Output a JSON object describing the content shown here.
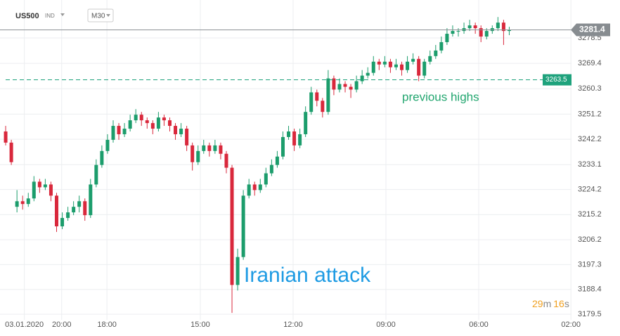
{
  "chart_data": {
    "type": "candlestick",
    "symbol": "US500",
    "market": "IND",
    "timeframe": "M30",
    "up_color": "#1c9d6c",
    "down_color": "#d9283c",
    "grid": true,
    "ylim": [
      3177.5,
      3292.1
    ],
    "yticks": [
      3278.5,
      3269.4,
      3260.3,
      3251.2,
      3242.2,
      3233.1,
      3224.2,
      3215.2,
      3206.2,
      3197.3,
      3188.4,
      3179.5
    ],
    "xlim": [
      -1,
      100
    ],
    "xticks": [
      {
        "value": 3.3,
        "label": "03.01.2020"
      },
      {
        "value": 9.9,
        "label": "20:00"
      },
      {
        "value": 17.9,
        "label": "18:00"
      },
      {
        "value": 34.4,
        "label": "15:00"
      },
      {
        "value": 50.8,
        "label": "12:00"
      },
      {
        "value": 67.2,
        "label": "09:00"
      },
      {
        "value": 83.6,
        "label": "06:00"
      },
      {
        "value": 99.9,
        "label": "02:00"
      }
    ],
    "last_price": 3281.4,
    "level": 3263.5,
    "level_color": "#1ea27c",
    "level_annotation": "previous highs",
    "event_annotation": "Iranian attack",
    "countdown": {
      "minutes": 29,
      "minutes_unit": "m",
      "seconds": 16,
      "seconds_unit": "s"
    },
    "candles": [
      [
        3245,
        3247,
        3240,
        3241
      ],
      [
        3241,
        3242,
        3233,
        3234
      ],
      [
        3218,
        3224,
        3216,
        3220
      ],
      [
        3220,
        3222,
        3217,
        3219
      ],
      [
        3219,
        3223,
        3218,
        3221
      ],
      [
        3221,
        3229,
        3220,
        3227
      ],
      [
        3227,
        3228,
        3223,
        3225
      ],
      [
        3225,
        3228,
        3224,
        3226
      ],
      [
        3226,
        3227,
        3220,
        3222
      ],
      [
        3222,
        3223,
        3209,
        3211
      ],
      [
        3211,
        3216,
        3210,
        3214
      ],
      [
        3214,
        3218,
        3213,
        3216
      ],
      [
        3216,
        3220,
        3215,
        3218
      ],
      [
        3218,
        3222,
        3216,
        3220
      ],
      [
        3220,
        3221,
        3213,
        3215
      ],
      [
        3215,
        3228,
        3214,
        3226
      ],
      [
        3226,
        3235,
        3225,
        3233
      ],
      [
        3233,
        3240,
        3232,
        3238
      ],
      [
        3238,
        3244,
        3237,
        3242
      ],
      [
        3242,
        3249,
        3241,
        3247
      ],
      [
        3247,
        3248,
        3242,
        3244
      ],
      [
        3244,
        3248,
        3243,
        3246
      ],
      [
        3246,
        3251,
        3245,
        3249
      ],
      [
        3249,
        3253,
        3248,
        3251
      ],
      [
        3251,
        3252,
        3247,
        3249
      ],
      [
        3249,
        3250,
        3246,
        3248
      ],
      [
        3248,
        3249,
        3244,
        3246
      ],
      [
        3246,
        3252,
        3245,
        3250
      ],
      [
        3250,
        3251,
        3247,
        3249
      ],
      [
        3249,
        3250,
        3245,
        3247
      ],
      [
        3247,
        3248,
        3242,
        3244
      ],
      [
        3244,
        3248,
        3243,
        3246
      ],
      [
        3246,
        3247,
        3238,
        3240
      ],
      [
        3240,
        3241,
        3231,
        3234
      ],
      [
        3234,
        3240,
        3233,
        3238
      ],
      [
        3238,
        3242,
        3237,
        3240
      ],
      [
        3240,
        3241,
        3236,
        3238
      ],
      [
        3238,
        3242,
        3237,
        3240
      ],
      [
        3240,
        3241,
        3235,
        3237
      ],
      [
        3237,
        3238,
        3230,
        3232
      ],
      [
        3232,
        3233,
        3180,
        3190
      ],
      [
        3190,
        3203,
        3188,
        3200
      ],
      [
        3200,
        3224,
        3199,
        3222
      ],
      [
        3222,
        3228,
        3221,
        3226
      ],
      [
        3226,
        3227,
        3222,
        3224
      ],
      [
        3224,
        3228,
        3223,
        3226
      ],
      [
        3226,
        3232,
        3225,
        3230
      ],
      [
        3230,
        3235,
        3229,
        3233
      ],
      [
        3233,
        3238,
        3232,
        3236
      ],
      [
        3236,
        3245,
        3235,
        3243
      ],
      [
        3243,
        3247,
        3242,
        3245
      ],
      [
        3245,
        3246,
        3238,
        3240
      ],
      [
        3240,
        3246,
        3239,
        3244
      ],
      [
        3244,
        3254,
        3243,
        3252
      ],
      [
        3252,
        3261,
        3251,
        3259
      ],
      [
        3259,
        3260,
        3254,
        3256
      ],
      [
        3256,
        3257,
        3250,
        3252
      ],
      [
        3252,
        3267,
        3251,
        3264
      ],
      [
        3264,
        3265,
        3258,
        3260
      ],
      [
        3260,
        3264,
        3259,
        3262
      ],
      [
        3262,
        3263,
        3259,
        3261
      ],
      [
        3261,
        3262,
        3257,
        3260
      ],
      [
        3260,
        3265,
        3259,
        3263
      ],
      [
        3263,
        3267,
        3262,
        3265
      ],
      [
        3265,
        3268,
        3264,
        3266
      ],
      [
        3266,
        3272,
        3265,
        3270
      ],
      [
        3270,
        3271,
        3267,
        3269
      ],
      [
        3269,
        3272,
        3268,
        3270
      ],
      [
        3270,
        3271,
        3266,
        3268
      ],
      [
        3268,
        3271,
        3267,
        3269
      ],
      [
        3269,
        3270,
        3265,
        3267
      ],
      [
        3267,
        3272,
        3266,
        3270
      ],
      [
        3270,
        3273,
        3269,
        3271
      ],
      [
        3271,
        3272,
        3263,
        3265
      ],
      [
        3265,
        3271,
        3264,
        3270
      ],
      [
        3270,
        3274,
        3269,
        3272
      ],
      [
        3272,
        3276,
        3271,
        3274
      ],
      [
        3274,
        3279,
        3273,
        3277
      ],
      [
        3277,
        3282,
        3276,
        3280
      ],
      [
        3280,
        3283,
        3279,
        3281
      ],
      [
        3281,
        3282,
        3279,
        3281
      ],
      [
        3281,
        3284,
        3280,
        3282
      ],
      [
        3282,
        3285,
        3281,
        3283
      ],
      [
        3283,
        3284,
        3280,
        3282
      ],
      [
        3282,
        3283,
        3277,
        3279
      ],
      [
        3279,
        3282,
        3278,
        3281
      ],
      [
        3281,
        3283,
        3280,
        3282
      ],
      [
        3282,
        3286,
        3281,
        3284
      ],
      [
        3284,
        3285,
        3276,
        3281
      ],
      [
        3281,
        3282.5,
        3279.5,
        3281.4
      ]
    ]
  }
}
